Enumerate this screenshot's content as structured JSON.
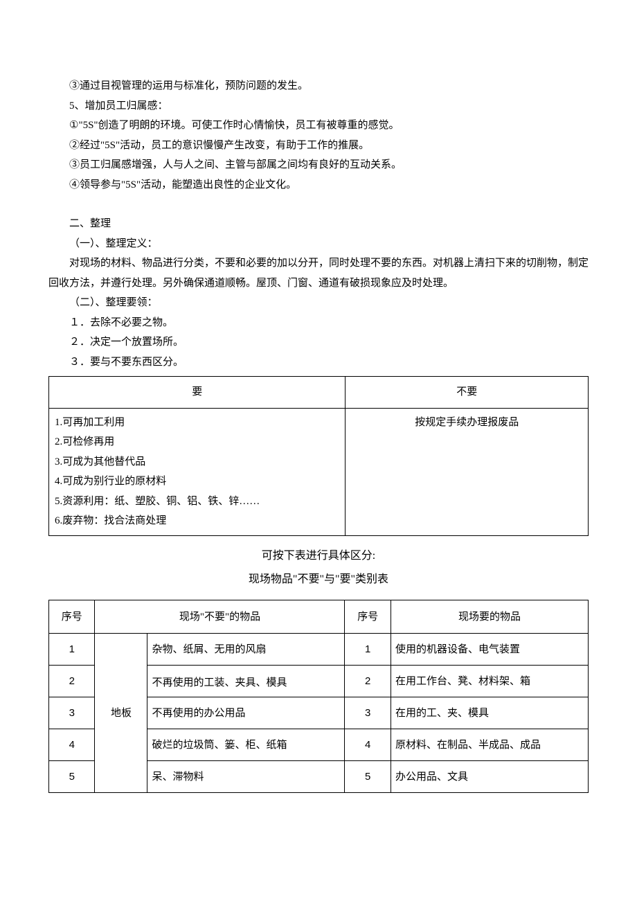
{
  "p1": "③通过目视管理的运用与标准化，预防问题的发生。",
  "p2": "5、增加员工归属感：",
  "p3": "①\"5S\"创造了明朗的环境。可使工作时心情愉快，员工有被尊重的感觉。",
  "p4": "②经过\"5S\"活动，员工的意识慢慢产生改变，有助于工作的推展。",
  "p5": "③员工归属感增强，人与人之间、主管与部属之间均有良好的互动关系。",
  "p6": "④领导参与\"5S\"活动，能塑造出良性的企业文化。",
  "s2_title": "二、整理",
  "s2_def_label": "（一）、整理定义：",
  "s2_def_body": "对现场的材料、物品进行分类，不要和必要的加以分开，同时处理不要的东西。对机器上清扫下来的切削物，制定回收方法，并遵行处理。另外确保通道顺畅。屋顶、门窗、通道有破损现象应及时处理。",
  "s2_key_label": "（二）、整理要领：",
  "s2_k1": "１．去除不必要之物。",
  "s2_k2": "２．决定一个放置场所。",
  "s2_k3": "３．要与不要东西区分。",
  "t1": {
    "h_left": "要",
    "h_right": "不要",
    "left_lines": [
      "1.可再加工利用",
      "2.可检修再用",
      "3.可成为其他替代品",
      "4.可成为别行业的原材料",
      "5.资源利用：纸、塑胶、铜、铝、铁、锌……",
      "6.废弃物：找合法商处理"
    ],
    "right_text": "按规定手续办理报废品"
  },
  "mid_line1": "可按下表进行具体区分:",
  "mid_line2": "现场物品\"不要\"与\"要\"类别表",
  "t2": {
    "h_seq": "序号",
    "h_unwanted": "现场\"不要\"的物品",
    "h_seq2": "序号",
    "h_wanted": "现场要的物品",
    "loc": "地板",
    "rows": [
      {
        "n1": "1",
        "u": "杂物、纸屑、无用的风扇",
        "n2": "1",
        "w": "使用的机器设备、电气装置"
      },
      {
        "n1": "2",
        "u": "不再使用的工装、夹具、模具",
        "n2": "2",
        "w": "在用工作台、凳、材料架、箱"
      },
      {
        "n1": "3",
        "u": "不再使用的办公用品",
        "n2": "3",
        "w": "在用的工、夹、模具"
      },
      {
        "n1": "4",
        "u": "破烂的垃圾筒、篓、柜、纸箱",
        "n2": "4",
        "w": "原材料、在制品、半成品、成品"
      },
      {
        "n1": "5",
        "u": "呆、滞物料",
        "n2": "5",
        "w": "办公用品、文具"
      }
    ]
  }
}
